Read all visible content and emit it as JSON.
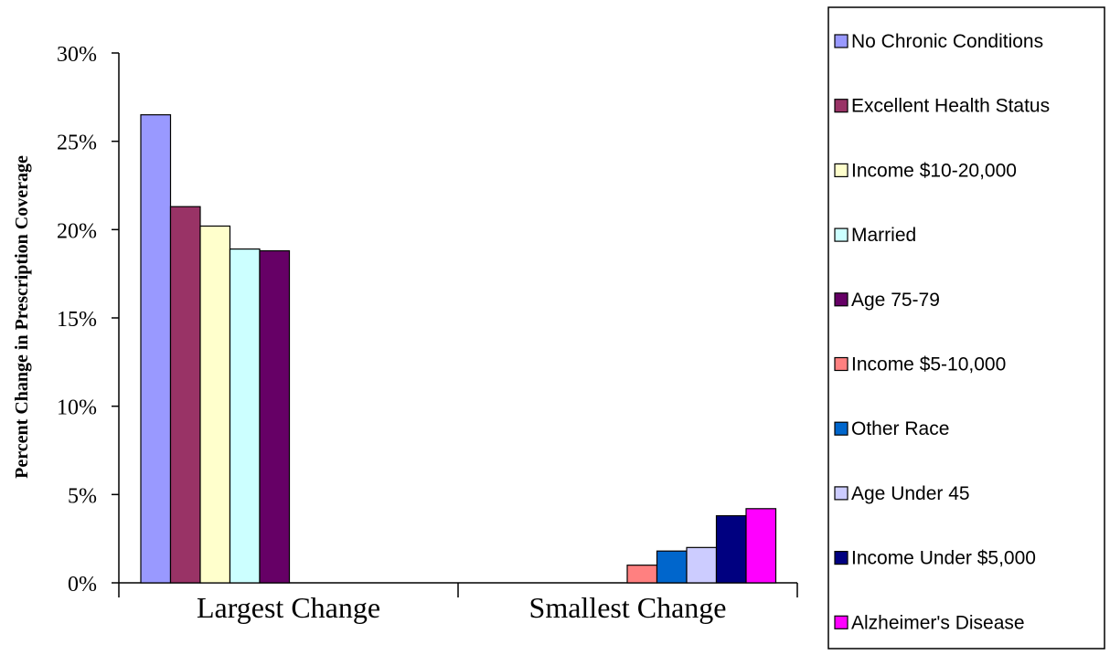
{
  "chart_data": {
    "type": "bar",
    "ylabel": "Percent Change in Prescription Coverage",
    "xlabel": "",
    "ylim": [
      0,
      30
    ],
    "yticks": [
      "0%",
      "5%",
      "10%",
      "15%",
      "20%",
      "25%",
      "30%"
    ],
    "yticks_values": [
      0,
      5,
      10,
      15,
      20,
      25,
      30
    ],
    "grid": false,
    "legend_position": "right",
    "groups": [
      {
        "label": "Largest Change",
        "series": [
          {
            "name": "No Chronic Conditions",
            "value": 26.5,
            "color": "#9999ff"
          },
          {
            "name": "Excellent Health Status",
            "value": 21.3,
            "color": "#993366"
          },
          {
            "name": "Income $10-20,000",
            "value": 20.2,
            "color": "#ffffcc"
          },
          {
            "name": "Married",
            "value": 18.9,
            "color": "#ccffff"
          },
          {
            "name": "Age 75-79",
            "value": 18.8,
            "color": "#660066"
          }
        ]
      },
      {
        "label": "Smallest Change",
        "series": [
          {
            "name": "Income $5-10,000",
            "value": 1.0,
            "color": "#ff8080"
          },
          {
            "name": "Other Race",
            "value": 1.8,
            "color": "#0066cc"
          },
          {
            "name": "Age Under 45",
            "value": 2.0,
            "color": "#ccccff"
          },
          {
            "name": "Income Under $5,000",
            "value": 3.8,
            "color": "#000080"
          },
          {
            "name": "Alzheimer's Disease",
            "value": 4.2,
            "color": "#ff00ff"
          }
        ]
      }
    ]
  }
}
